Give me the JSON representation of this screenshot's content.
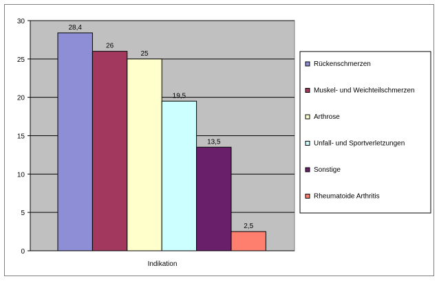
{
  "chart_data": {
    "type": "bar",
    "xlabel": "Indikation",
    "ylim": [
      0,
      30
    ],
    "yticks": [
      0,
      5,
      10,
      15,
      20,
      25,
      30
    ],
    "grid": true,
    "legend_position": "right",
    "plot_background": "#c0c0c0",
    "series": [
      {
        "name": "Rückenschmerzen",
        "value": 28.4,
        "label": "28,4",
        "color": "#8e8ed6"
      },
      {
        "name": "Muskel- und Weichteilschmerzen",
        "value": 26,
        "label": "26",
        "color": "#a3385f"
      },
      {
        "name": "Arthrose",
        "value": 25,
        "label": "25",
        "color": "#ffffcc"
      },
      {
        "name": "Unfall- und Sportverletzungen",
        "value": 19.5,
        "label": "19,5",
        "color": "#ccffff"
      },
      {
        "name": "Sonstige",
        "value": 13.5,
        "label": "13,5",
        "color": "#6a1f6a"
      },
      {
        "name": "Rheumatoide Arthritis",
        "value": 2.5,
        "label": "2,5",
        "color": "#ff7f6f"
      }
    ]
  }
}
